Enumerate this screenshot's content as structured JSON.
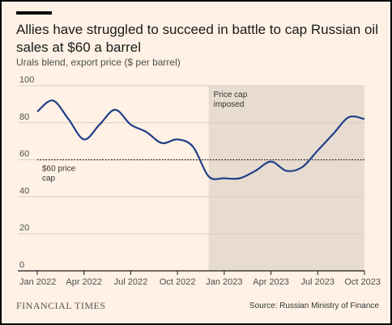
{
  "title": "Allies have struggled to succeed in battle to cap Russian oil sales at $60 a barrel",
  "subtitle": "Urals blend, export price ($ per barrel)",
  "brand": "FINANCIAL TIMES",
  "source": "Source: Russian Ministry of Finance",
  "colors": {
    "background": "#fff1e5",
    "line": "#1e3f87",
    "shade": "#e8dcd1",
    "grid": "#d9cdc1"
  },
  "chart_data": {
    "type": "line",
    "ylim": [
      0,
      100
    ],
    "yticks": [
      0,
      20,
      40,
      60,
      80,
      100
    ],
    "xticks": [
      {
        "label": "Jan 2022",
        "x": "2022-01"
      },
      {
        "label": "Apr 2022",
        "x": "2022-04"
      },
      {
        "label": "Jul 2022",
        "x": "2022-07"
      },
      {
        "label": "Oct 2022",
        "x": "2022-10"
      },
      {
        "label": "Jan 2023",
        "x": "2023-01"
      },
      {
        "label": "Apr 2023",
        "x": "2023-04"
      },
      {
        "label": "Jul 2023",
        "x": "2023-07"
      },
      {
        "label": "Oct 2023",
        "x": "2023-10"
      }
    ],
    "xlim": [
      "2022-01",
      "2023-10"
    ],
    "series": [
      {
        "points": [
          [
            "2022-01",
            86
          ],
          [
            "2022-02",
            92
          ],
          [
            "2022-03",
            82
          ],
          [
            "2022-04",
            71
          ],
          [
            "2022-05",
            79
          ],
          [
            "2022-06",
            87
          ],
          [
            "2022-07",
            79
          ],
          [
            "2022-08",
            75
          ],
          [
            "2022-09",
            69
          ],
          [
            "2022-10",
            71
          ],
          [
            "2022-11",
            67
          ],
          [
            "2022-12",
            51
          ],
          [
            "2023-01",
            50
          ],
          [
            "2023-02",
            50
          ],
          [
            "2023-03",
            54
          ],
          [
            "2023-04",
            59
          ],
          [
            "2023-05",
            54
          ],
          [
            "2023-06",
            56
          ],
          [
            "2023-07",
            65
          ],
          [
            "2023-08",
            74
          ],
          [
            "2023-09",
            83
          ],
          [
            "2023-10",
            82
          ]
        ]
      }
    ],
    "reference_line": {
      "value": 60,
      "label_line1": "$60 price",
      "label_line2": "cap"
    },
    "shaded_region": {
      "from": "2022-12",
      "to": "2023-10",
      "label_line1": "Price cap",
      "label_line2": "imposed"
    }
  }
}
